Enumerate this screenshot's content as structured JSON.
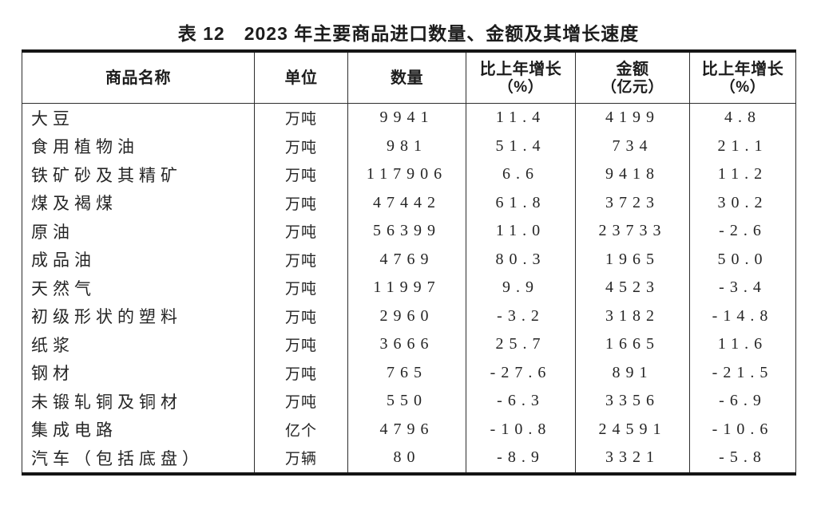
{
  "page": {
    "title": "表 12　2023 年主要商品进口数量、金额及其增长速度"
  },
  "colors": {
    "background": "#ffffff",
    "text_ink": "#252525",
    "thick_rule": "#151515",
    "thin_rule": "#2d2d2d"
  },
  "table": {
    "columns": [
      {
        "label": "商品名称",
        "sub": ""
      },
      {
        "label": "单位",
        "sub": ""
      },
      {
        "label": "数量",
        "sub": ""
      },
      {
        "label": "比上年增长",
        "sub": "（%）"
      },
      {
        "label": "金额",
        "sub": "（亿元）"
      },
      {
        "label": "比上年增长",
        "sub": "（%）"
      }
    ],
    "rows": [
      [
        "大豆",
        "万吨",
        "9941",
        "11.4",
        "4199",
        "4.8"
      ],
      [
        "食用植物油",
        "万吨",
        "981",
        "51.4",
        "734",
        "21.1"
      ],
      [
        "铁矿砂及其精矿",
        "万吨",
        "117906",
        "6.6",
        "9418",
        "11.2"
      ],
      [
        "煤及褐煤",
        "万吨",
        "47442",
        "61.8",
        "3723",
        "30.2"
      ],
      [
        "原油",
        "万吨",
        "56399",
        "11.0",
        "23733",
        "-2.6"
      ],
      [
        "成品油",
        "万吨",
        "4769",
        "80.3",
        "1965",
        "50.0"
      ],
      [
        "天然气",
        "万吨",
        "11997",
        "9.9",
        "4523",
        "-3.4"
      ],
      [
        "初级形状的塑料",
        "万吨",
        "2960",
        "-3.2",
        "3182",
        "-14.8"
      ],
      [
        "纸浆",
        "万吨",
        "3666",
        "25.7",
        "1665",
        "11.6"
      ],
      [
        "钢材",
        "万吨",
        "765",
        "-27.6",
        "891",
        "-21.5"
      ],
      [
        "未锻轧铜及铜材",
        "万吨",
        "550",
        "-6.3",
        "3356",
        "-6.9"
      ],
      [
        "集成电路",
        "亿个",
        "4796",
        "-10.8",
        "24591",
        "-10.6"
      ],
      [
        "汽车（包括底盘）",
        "万辆",
        "80",
        "-8.9",
        "3321",
        "-5.8"
      ]
    ]
  }
}
